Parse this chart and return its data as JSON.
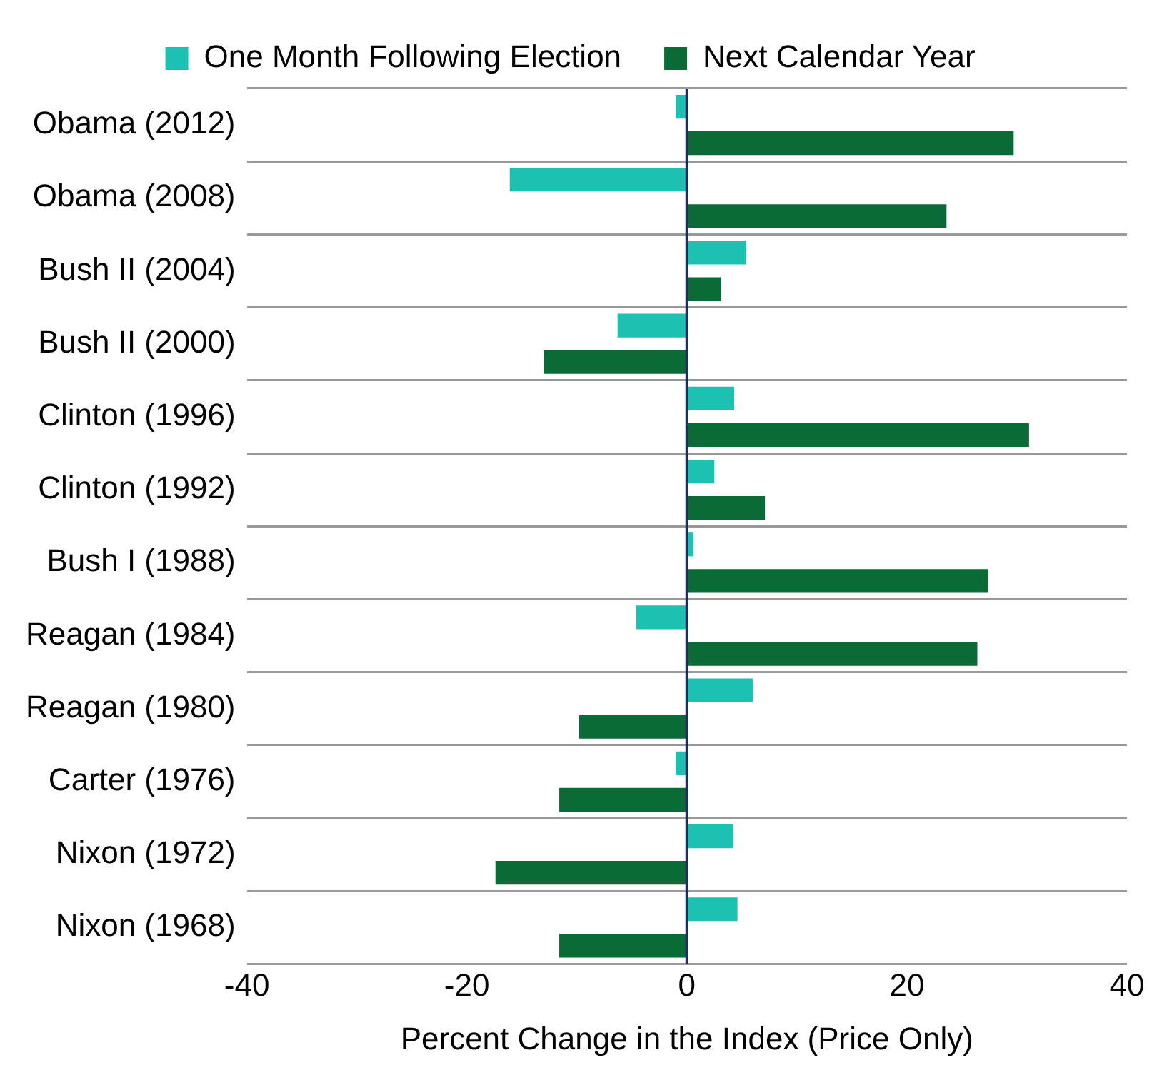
{
  "chart_data": {
    "type": "bar",
    "orientation": "horizontal",
    "xlabel": "Percent Change in the Index (Price Only)",
    "categories": [
      "Obama (2012)",
      "Obama (2008)",
      "Bush II (2004)",
      "Bush II (2000)",
      "Clinton (1996)",
      "Clinton (1992)",
      "Bush I (1988)",
      "Reagan (1984)",
      "Reagan (1980)",
      "Carter (1976)",
      "Nixon (1972)",
      "Nixon (1968)"
    ],
    "series": [
      {
        "name": "One Month Following Election",
        "color": "#1cc1b1",
        "values": [
          -1.0,
          -16.1,
          5.4,
          -6.3,
          4.3,
          2.5,
          0.6,
          -4.6,
          6.0,
          -1.0,
          4.2,
          4.6
        ]
      },
      {
        "name": "Next Calendar Year",
        "color": "#0b6b36",
        "values": [
          29.7,
          23.6,
          3.1,
          -13.0,
          31.1,
          7.1,
          27.4,
          26.4,
          -9.8,
          -11.6,
          -17.4,
          -11.6
        ]
      }
    ],
    "xlim": [
      -40,
      40
    ],
    "xticks": [
      -40,
      -20,
      0,
      20,
      40
    ],
    "grid": "y",
    "legend": "top"
  }
}
